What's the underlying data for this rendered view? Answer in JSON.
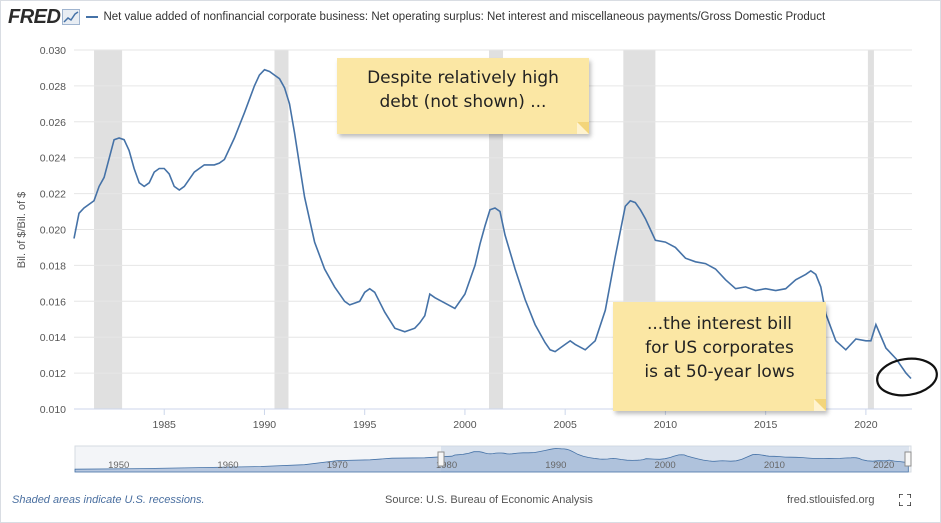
{
  "header": {
    "logo_text": "FRED",
    "series_title": "Net value added of nonfinancial corporate business: Net operating surplus: Net interest and miscellaneous payments/Gross Domestic Product",
    "series_color": "#4572a7"
  },
  "annotations": {
    "top_note": [
      "Despite relatively high",
      "debt (not shown) ..."
    ],
    "bottom_note": [
      "...the interest bill",
      "for US corporates",
      "is at 50-year lows"
    ],
    "note_color": "#fbe7a4"
  },
  "footer": {
    "recession_note": "Shaded areas indicate U.S. recessions.",
    "source": "Source: U.S. Bureau of Economic Analysis",
    "site": "fred.stlouisfed.org",
    "fullscreen_icon": "fullscreen-icon"
  },
  "navigator": {
    "year_labels": [
      "1950",
      "1960",
      "1970",
      "1980",
      "1990",
      "2000",
      "2010",
      "2020"
    ],
    "selected_range": [
      1980,
      2022
    ]
  },
  "chart_data": {
    "type": "line",
    "title": "",
    "xlabel": "",
    "ylabel": "Bil. of $/Bil. of $",
    "xlim": [
      1980.5,
      2022.3
    ],
    "ylim": [
      0.01,
      0.03
    ],
    "yticks": [
      "0.010",
      "0.012",
      "0.014",
      "0.016",
      "0.018",
      "0.020",
      "0.022",
      "0.024",
      "0.026",
      "0.028",
      "0.030"
    ],
    "xticks": [
      "1985",
      "1990",
      "1995",
      "2000",
      "2005",
      "2010",
      "2015",
      "2020"
    ],
    "grid": true,
    "recessions": [
      [
        1981.5,
        1982.9
      ],
      [
        1990.5,
        1991.2
      ],
      [
        2001.2,
        2001.9
      ],
      [
        2007.9,
        2009.5
      ],
      [
        2020.1,
        2020.4
      ]
    ],
    "series": [
      {
        "x": [
          1980.5,
          1980.75,
          1981.0,
          1981.5,
          1981.75,
          1982.0,
          1982.5,
          1982.75,
          1983.0,
          1983.25,
          1983.5,
          1983.75,
          1984.0,
          1984.25,
          1984.5,
          1984.75,
          1985.0,
          1985.25,
          1985.5,
          1985.75,
          1986.0,
          1986.5,
          1987.0,
          1987.5,
          1987.75,
          1988.0,
          1988.5,
          1989.0,
          1989.5,
          1989.75,
          1990.0,
          1990.25,
          1990.5,
          1990.75,
          1991.0,
          1991.25,
          1991.5,
          1991.75,
          1992.0,
          1992.5,
          1993.0,
          1993.5,
          1993.75,
          1994.0,
          1994.25,
          1994.5,
          1994.75,
          1995.0,
          1995.25,
          1995.5,
          1996.0,
          1996.5,
          1997.0,
          1997.5,
          1997.75,
          1998.0,
          1998.25,
          1998.5,
          1999.0,
          1999.5,
          2000.0,
          2000.5,
          2000.75,
          2001.0,
          2001.25,
          2001.5,
          2001.75,
          2002.0,
          2002.5,
          2003.0,
          2003.5,
          2004.0,
          2004.25,
          2004.5,
          2005.0,
          2005.25,
          2005.5,
          2006.0,
          2006.5,
          2007.0,
          2007.5,
          2008.0,
          2008.25,
          2008.5,
          2008.75,
          2009.0,
          2009.25,
          2009.5,
          2010.0,
          2010.5,
          2011.0,
          2011.5,
          2012.0,
          2012.5,
          2013.0,
          2013.5,
          2014.0,
          2014.5,
          2015.0,
          2015.5,
          2016.0,
          2016.5,
          2017.0,
          2017.25,
          2017.5,
          2017.75,
          2018.0,
          2018.5,
          2019.0,
          2019.5,
          2020.0,
          2020.25,
          2020.5,
          2021.0,
          2021.5,
          2022.0,
          2022.25
        ],
        "y": [
          0.0195,
          0.0209,
          0.0212,
          0.0216,
          0.0224,
          0.0229,
          0.025,
          0.0251,
          0.025,
          0.0244,
          0.0234,
          0.0226,
          0.0224,
          0.0226,
          0.0232,
          0.0234,
          0.0234,
          0.0231,
          0.0224,
          0.0222,
          0.0224,
          0.0232,
          0.0236,
          0.0236,
          0.0237,
          0.0239,
          0.0251,
          0.0265,
          0.028,
          0.0286,
          0.0289,
          0.0288,
          0.0286,
          0.0284,
          0.0279,
          0.027,
          0.0254,
          0.0236,
          0.0218,
          0.0193,
          0.0178,
          0.0168,
          0.0164,
          0.016,
          0.0158,
          0.0159,
          0.016,
          0.0165,
          0.0167,
          0.0165,
          0.0154,
          0.0145,
          0.0143,
          0.0145,
          0.0148,
          0.0152,
          0.0164,
          0.0162,
          0.0159,
          0.0156,
          0.0164,
          0.018,
          0.0192,
          0.0202,
          0.0211,
          0.0212,
          0.021,
          0.0197,
          0.0178,
          0.0161,
          0.0147,
          0.0137,
          0.0133,
          0.0132,
          0.0136,
          0.0138,
          0.0136,
          0.0133,
          0.0138,
          0.0155,
          0.0185,
          0.0213,
          0.0216,
          0.0215,
          0.0211,
          0.0206,
          0.02,
          0.0194,
          0.0193,
          0.019,
          0.0184,
          0.0182,
          0.0181,
          0.0178,
          0.0172,
          0.0167,
          0.0168,
          0.0166,
          0.0167,
          0.0166,
          0.0167,
          0.0172,
          0.0175,
          0.0177,
          0.0175,
          0.0168,
          0.0153,
          0.0138,
          0.0133,
          0.0139,
          0.0138,
          0.0138,
          0.0147,
          0.0134,
          0.0128,
          0.012,
          0.0117
        ]
      }
    ]
  }
}
